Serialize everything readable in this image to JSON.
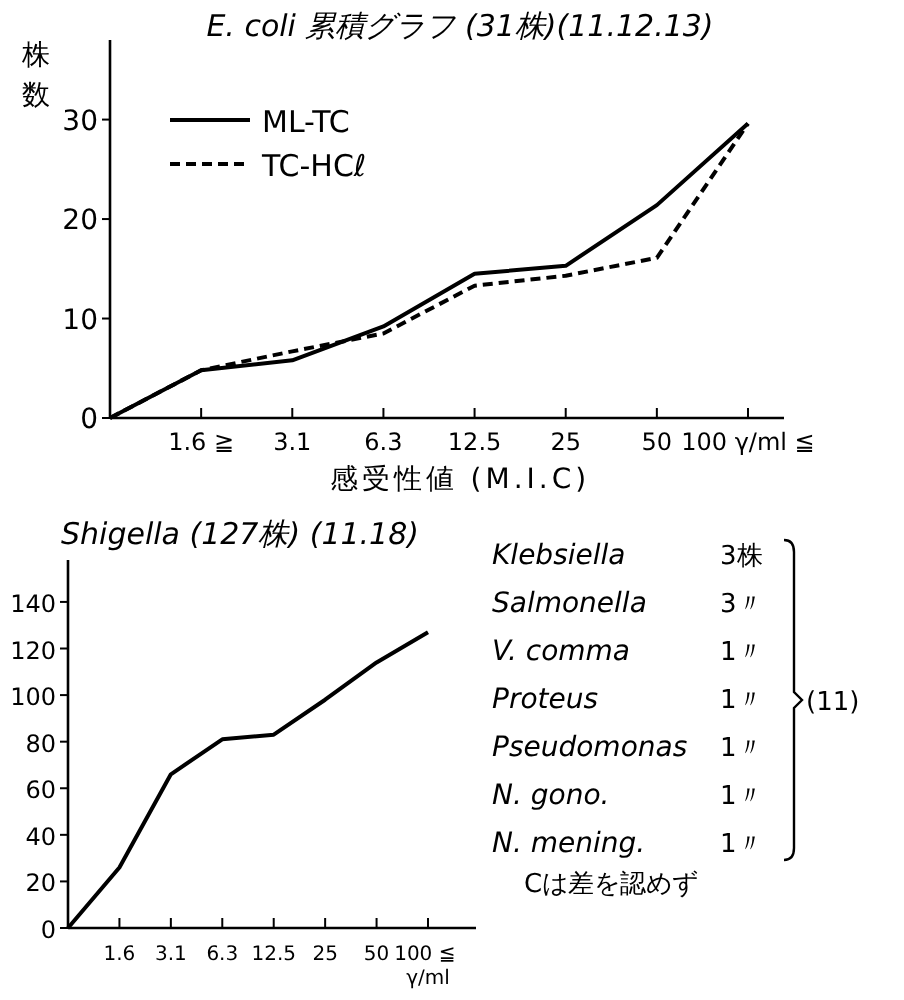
{
  "chart_data": [
    {
      "type": "line",
      "title": "E. coli 累積グラフ (31株)(11.12.13)",
      "xlabel": "感受性値 (M.I.C)",
      "ylabel": "株数",
      "categories": [
        null,
        "1.6 ≧",
        "3.1",
        "6.3",
        "12.5",
        "25",
        "50",
        "100 γ/ml ≦"
      ],
      "series": [
        {
          "name": "ML-TC",
          "color": "#000000",
          "line_style": "solid",
          "values": [
            0,
            4.8,
            5.8,
            9.2,
            14.5,
            15.3,
            21.4,
            29.6
          ]
        },
        {
          "name": "TC-HCℓ",
          "color": "#000000",
          "line_style": "dashed",
          "values": [
            0,
            4.8,
            6.7,
            8.5,
            13.3,
            14.3,
            16.1,
            29.6
          ]
        }
      ],
      "ylim": [
        0,
        38
      ],
      "yticks": [
        0,
        10,
        20,
        30
      ],
      "legend": "top left",
      "grid": false
    },
    {
      "type": "line",
      "title": "Shigella (127株) (11.18)",
      "categories": [
        null,
        "1.6",
        "3.1",
        "6.3",
        "12.5",
        "25",
        "50",
        "100 ≦ γ/ml"
      ],
      "series": [
        {
          "color": "#000000",
          "values": [
            0,
            26,
            66,
            81,
            83,
            98,
            114,
            127
          ]
        }
      ],
      "ylim": [
        0,
        158
      ],
      "yticks": [
        0,
        20,
        40,
        60,
        80,
        100,
        120,
        140
      ],
      "grid": false
    },
    {
      "type": "other",
      "annotations": [
        "Klebsiella",
        "3株",
        "Salmonella",
        "3〃",
        "V. comma",
        "1〃",
        "Proteus",
        "1〃",
        "Pseudomonas",
        "1〃",
        "N. gono.",
        "1〃",
        "N. mening.",
        "1〃",
        "(11)",
        "Cは差を認めず"
      ]
    }
  ]
}
